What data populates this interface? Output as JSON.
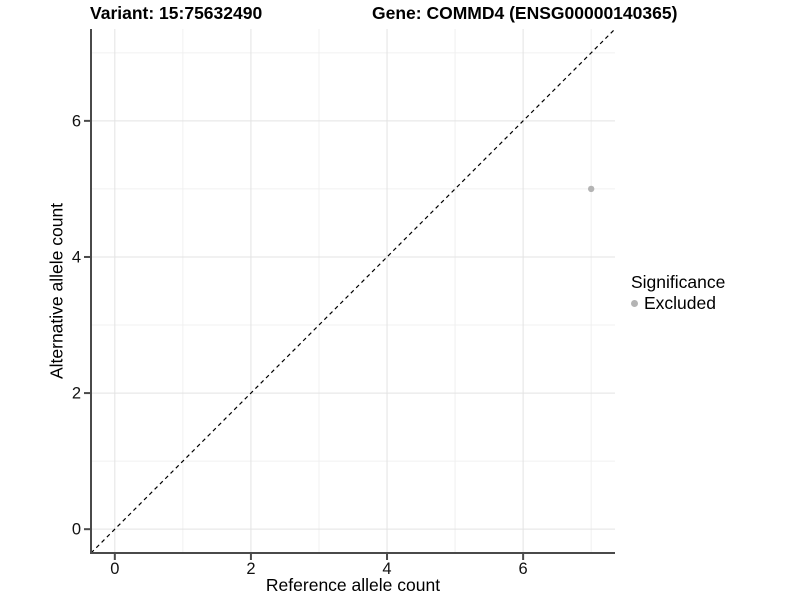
{
  "header": {
    "variant_title": "Variant: 15:75632490",
    "gene_title": "Gene: COMMD4 (ENSG00000140365)"
  },
  "chart_data": {
    "type": "scatter",
    "title": "Variant: 15:75632490   Gene: COMMD4 (ENSG00000140365)",
    "xlabel": "Reference allele count",
    "ylabel": "Alternative allele count",
    "xlim": [
      -0.35,
      7.35
    ],
    "ylim": [
      -0.35,
      7.35
    ],
    "x_ticks": [
      0,
      2,
      4,
      6
    ],
    "y_ticks": [
      0,
      2,
      4,
      6
    ],
    "x_minor_ticks": [
      1,
      3,
      5,
      7
    ],
    "y_minor_ticks": [
      1,
      3,
      5,
      7
    ],
    "grid": true,
    "legend_position": "right",
    "series": [
      {
        "name": "Excluded",
        "color": "#b4b4b4",
        "points": [
          [
            7,
            5
          ]
        ]
      }
    ],
    "reference_line": {
      "kind": "identity y=x",
      "style": "dashed",
      "color": "#000000",
      "x1": -0.35,
      "y1": -0.35,
      "x2": 7.35,
      "y2": 7.35
    },
    "legend": {
      "title": "Significance",
      "items": [
        {
          "label": "Excluded",
          "color": "#b4b4b4",
          "marker": "circle"
        }
      ]
    }
  },
  "colors": {
    "background": "#ffffff",
    "axis_line": "#4a4a4a",
    "grid_major": "#e3e3e3",
    "grid_minor": "#f0f0f0",
    "tick_label": "#111111",
    "point": "#b4b4b4"
  }
}
